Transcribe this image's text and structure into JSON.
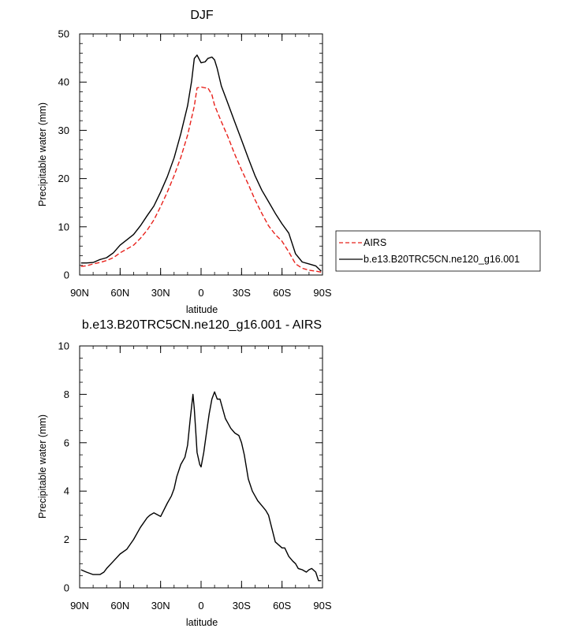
{
  "chart_data": [
    {
      "type": "line",
      "title": "DJF",
      "xlabel": "latitude",
      "ylabel": "Precipitable water (mm)",
      "xlim": [
        90,
        -90
      ],
      "ylim": [
        0,
        50
      ],
      "yticks": [
        0,
        10,
        20,
        30,
        40,
        50
      ],
      "xticks": [
        {
          "value": 90,
          "label": "90N"
        },
        {
          "value": 60,
          "label": "60N"
        },
        {
          "value": 30,
          "label": "30N"
        },
        {
          "value": 0,
          "label": "0"
        },
        {
          "value": -30,
          "label": "30S"
        },
        {
          "value": -60,
          "label": "60S"
        },
        {
          "value": -90,
          "label": "90S"
        }
      ],
      "legend": {
        "position": "right",
        "entries": [
          "AIRS",
          "b.e13.B20TRC5CN.ne120_g16.001"
        ]
      },
      "series": [
        {
          "name": "AIRS",
          "color": "#e8211b",
          "dash": true,
          "x": [
            89,
            85,
            80,
            75,
            70,
            65,
            60,
            55,
            50,
            45,
            40,
            35,
            30,
            25,
            20,
            15,
            10,
            5,
            3,
            0,
            -3,
            -5,
            -8,
            -10,
            -15,
            -20,
            -25,
            -30,
            -35,
            -40,
            -45,
            -50,
            -55,
            -60,
            -65,
            -70,
            -75,
            -80,
            -85,
            -89
          ],
          "y": [
            1.8,
            1.9,
            2.3,
            2.6,
            3.0,
            3.6,
            4.6,
            5.4,
            6.2,
            7.6,
            9.3,
            11.4,
            14.2,
            17.2,
            20.6,
            24.4,
            29.0,
            35.0,
            38.8,
            39.0,
            38.8,
            38.8,
            37.4,
            35.2,
            31.8,
            28.6,
            25.0,
            21.8,
            18.8,
            15.6,
            12.8,
            10.2,
            8.4,
            7.0,
            4.8,
            2.3,
            1.4,
            1.0,
            0.8,
            0.6
          ]
        },
        {
          "name": "b.e13.B20TRC5CN.ne120_g16.001",
          "color": "#000000",
          "dash": false,
          "x": [
            89,
            85,
            80,
            75,
            70,
            65,
            60,
            55,
            50,
            45,
            40,
            35,
            30,
            25,
            20,
            15,
            10,
            7,
            5,
            3,
            0,
            -3,
            -5,
            -8,
            -10,
            -12,
            -15,
            -20,
            -25,
            -30,
            -35,
            -40,
            -45,
            -50,
            -55,
            -60,
            -65,
            -70,
            -75,
            -80,
            -85,
            -89
          ],
          "y": [
            2.5,
            2.5,
            2.6,
            3.2,
            3.6,
            4.6,
            6.2,
            7.3,
            8.4,
            10.2,
            12.3,
            14.3,
            17.2,
            20.4,
            24.3,
            29.3,
            35.1,
            40.2,
            44.9,
            45.6,
            44.0,
            44.2,
            44.9,
            45.2,
            44.6,
            42.8,
            39.2,
            35.5,
            31.7,
            28.0,
            24.2,
            20.6,
            17.6,
            15.2,
            12.8,
            10.6,
            8.7,
            4.4,
            2.7,
            2.3,
            1.9,
            0.8
          ]
        }
      ]
    },
    {
      "type": "line",
      "title": "b.e13.B20TRC5CN.ne120_g16.001 - AIRS",
      "xlabel": "latitude",
      "ylabel": "Precipitable water (mm)",
      "xlim": [
        90,
        -90
      ],
      "ylim": [
        0,
        10
      ],
      "yticks": [
        0,
        2,
        4,
        6,
        8,
        10
      ],
      "xticks": [
        {
          "value": 90,
          "label": "90N"
        },
        {
          "value": 60,
          "label": "60N"
        },
        {
          "value": 30,
          "label": "30N"
        },
        {
          "value": 0,
          "label": "0"
        },
        {
          "value": -30,
          "label": "30S"
        },
        {
          "value": -60,
          "label": "60S"
        },
        {
          "value": -90,
          "label": "90S"
        }
      ],
      "series": [
        {
          "color": "#000000",
          "dash": false,
          "x": [
            89,
            85,
            80,
            75,
            72,
            70,
            65,
            60,
            55,
            50,
            45,
            40,
            38,
            35,
            30,
            25,
            22,
            20,
            18,
            15,
            12,
            10,
            8,
            6,
            5,
            4,
            3,
            1,
            0,
            -2,
            -4,
            -6,
            -8,
            -10,
            -12,
            -14,
            -15,
            -18,
            -20,
            -22,
            -25,
            -28,
            -30,
            -32,
            -35,
            -38,
            -40,
            -42,
            -45,
            -48,
            -50,
            -55,
            -60,
            -62,
            -65,
            -68,
            -70,
            -72,
            -75,
            -78,
            -80,
            -82,
            -85,
            -87,
            -89
          ],
          "y": [
            0.75,
            0.65,
            0.55,
            0.55,
            0.65,
            0.8,
            1.1,
            1.4,
            1.6,
            2.0,
            2.5,
            2.9,
            3.0,
            3.1,
            2.95,
            3.5,
            3.8,
            4.1,
            4.6,
            5.1,
            5.4,
            5.9,
            7.0,
            8.0,
            7.4,
            6.5,
            5.6,
            5.1,
            5.0,
            5.6,
            6.4,
            7.2,
            7.8,
            8.1,
            7.8,
            7.8,
            7.6,
            7.0,
            6.8,
            6.6,
            6.4,
            6.3,
            6.0,
            5.5,
            4.5,
            4.0,
            3.8,
            3.6,
            3.4,
            3.2,
            3.0,
            1.9,
            1.65,
            1.65,
            1.3,
            1.1,
            1.0,
            0.8,
            0.75,
            0.65,
            0.75,
            0.8,
            0.65,
            0.3,
            0.3
          ]
        }
      ]
    }
  ]
}
